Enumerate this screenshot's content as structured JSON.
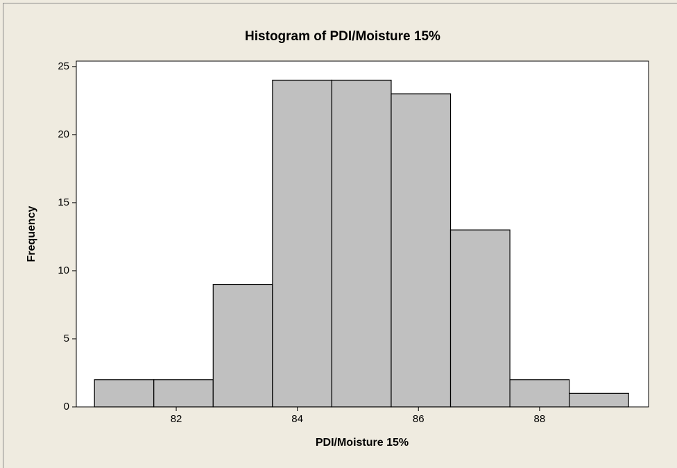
{
  "chart_data": {
    "type": "histogram",
    "title": "Histogram of PDI/Moisture 15%",
    "x_label": "PDI/Moisture 15%",
    "y_label": "Frequency",
    "bins": [
      80.65,
      81.63,
      82.61,
      83.59,
      84.57,
      85.55,
      86.53,
      87.51,
      88.49,
      89.47
    ],
    "values": [
      2,
      2,
      9,
      24,
      24,
      23,
      13,
      2,
      1
    ],
    "color": "#c0c0c0",
    "xlim": [
      80.35,
      89.8
    ],
    "xticks": [
      82,
      84,
      86,
      88
    ],
    "ylim": [
      0,
      25.4
    ],
    "yticks": [
      0,
      5,
      10,
      15,
      20,
      25
    ]
  }
}
